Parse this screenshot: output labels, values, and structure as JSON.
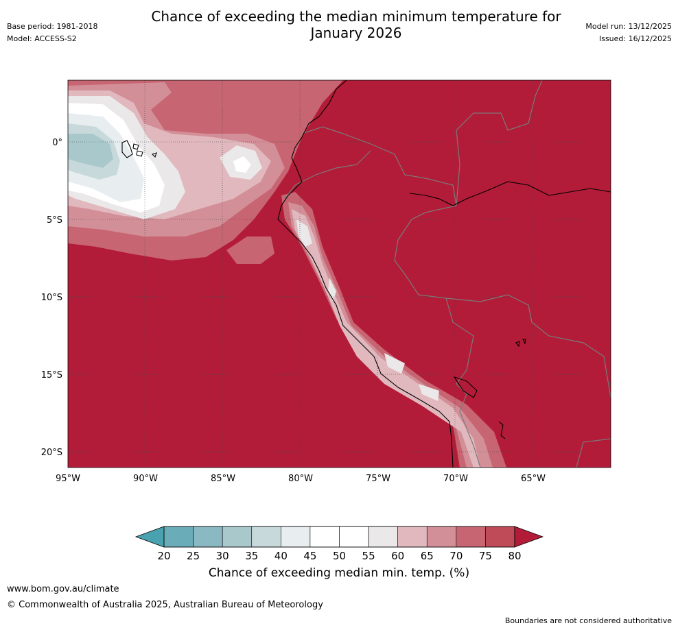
{
  "header": {
    "title_line1": "Chance of exceeding the median minimum temperature for",
    "title_line2": "January 2026",
    "base_period": "Base period: 1981-2018",
    "model": "Model: ACCESS-S2",
    "model_run": "Model run: 13/12/2025",
    "issued": "Issued: 16/12/2025"
  },
  "map": {
    "lat_labels": [
      "0°",
      "5°S",
      "10°S",
      "15°S",
      "20°S"
    ],
    "lon_labels": [
      "95°W",
      "90°W",
      "85°W",
      "80°W",
      "75°W",
      "70°W",
      "65°W"
    ],
    "dominant_category_color": "#b31c38",
    "ocean_low_color": "#a9c8cc"
  },
  "colorbar": {
    "ticks": [
      "20",
      "25",
      "30",
      "35",
      "40",
      "45",
      "50",
      "55",
      "60",
      "65",
      "70",
      "75",
      "80"
    ],
    "colors": [
      "#6aacb8",
      "#8ab9c4",
      "#a9c8cc",
      "#c8d9dc",
      "#e8eef0",
      "#ffffff",
      "#ffffff",
      "#ebe8e9",
      "#e0b8bd",
      "#d38f98",
      "#c86572",
      "#bf4a58"
    ],
    "low_extend_color": "#4aa2b0",
    "high_extend_color": "#b31c38",
    "label": "Chance of exceeding median min. temp. (%)"
  },
  "footer": {
    "url": "www.bom.gov.au/climate",
    "copyright": "© Commonwealth of Australia 2025, Australian Bureau of Meteorology",
    "disclaimer": "Boundaries are not considered authoritative"
  }
}
